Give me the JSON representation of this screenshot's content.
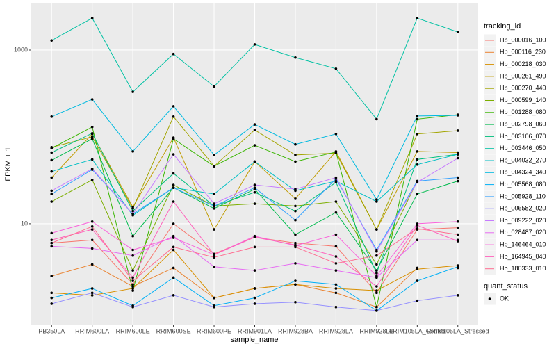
{
  "chart_data": {
    "type": "line",
    "x_label": "sample_name",
    "y_label": "FPKM + 1",
    "log_y": true,
    "grid": true,
    "legend_title": "tracking_id",
    "legend_position": "right",
    "categories": [
      "PB350LA",
      "RRIM600LA",
      "RRIM600LE",
      "RRIM600SE",
      "RRIM600PE",
      "RRIM901LA",
      "RRIM928BA",
      "RRIM928LA",
      "RRIM928LE",
      "RRIM105LA_Control",
      "RRIM105LA_Stressed"
    ],
    "ylim": [
      0.69,
      3436
    ],
    "yticks": [
      10,
      1000
    ],
    "point_legend": {
      "title": "quant_status",
      "levels": [
        "OK"
      ],
      "color": "#000000"
    },
    "series": [
      {
        "name": "Hb_000016_100",
        "color": "#F8766D",
        "values": [
          6,
          6.5,
          2,
          10,
          4.5,
          7,
          6,
          5.5,
          1.6,
          8.6,
          9
        ]
      },
      {
        "name": "Hb_000116_230",
        "color": "#EA8331",
        "values": [
          2.5,
          3.4,
          1.9,
          3.1,
          1.4,
          1.8,
          2,
          1.6,
          1.1,
          3.1,
          3.1
        ]
      },
      {
        "name": "Hb_000218_030",
        "color": "#D89000",
        "values": [
          1.6,
          1.5,
          1.8,
          5,
          1.4,
          1.8,
          2,
          1.8,
          1.7,
          3,
          3.3
        ]
      },
      {
        "name": "Hb_000261_490",
        "color": "#C09B00",
        "values": [
          34,
          108,
          15.6,
          98,
          8.6,
          52,
          19.4,
          68,
          8.6,
          68,
          66
        ]
      },
      {
        "name": "Hb_000270_440",
        "color": "#A3A500",
        "values": [
          76,
          100,
          15,
          171,
          46,
          120,
          62,
          65,
          8.6,
          108,
          118
        ]
      },
      {
        "name": "Hb_000599_140",
        "color": "#7CAE00",
        "values": [
          18,
          32,
          2.9,
          28,
          16,
          17,
          16,
          18,
          3.4,
          31,
          31
        ]
      },
      {
        "name": "Hb_001288_080",
        "color": "#39B600",
        "values": [
          74,
          130,
          1.7,
          95,
          46,
          80,
          52,
          67,
          1.1,
          160,
          180
        ]
      },
      {
        "name": "Hb_002798_060",
        "color": "#00BB4E",
        "values": [
          54,
          95,
          7.2,
          26,
          15,
          25,
          7.5,
          13.5,
          2.9,
          22,
          31
        ]
      },
      {
        "name": "Hb_003106_070",
        "color": "#00BF7D",
        "values": [
          66,
          110,
          14,
          38,
          16,
          23,
          14,
          30,
          2.7,
          55,
          63
        ]
      },
      {
        "name": "Hb_003446_050",
        "color": "#00C1A3",
        "values": [
          1290,
          2330,
          330,
          900,
          380,
          1160,
          820,
          610,
          160,
          2330,
          1610
        ]
      },
      {
        "name": "Hb_004032_270",
        "color": "#00BFC4",
        "values": [
          40,
          55,
          12.5,
          26,
          22,
          52,
          24,
          31,
          18,
          48,
          63
        ]
      },
      {
        "name": "Hb_004324_340",
        "color": "#00BAE0",
        "values": [
          171,
          270,
          68,
          225,
          62,
          139,
          82,
          108,
          19,
          174,
          177
        ]
      },
      {
        "name": "Hb_005568_080",
        "color": "#00B0F6",
        "values": [
          1.4,
          1.8,
          1.14,
          2.4,
          1.14,
          1.4,
          2.2,
          2,
          1,
          2.2,
          3.2
        ]
      },
      {
        "name": "Hb_005928_110",
        "color": "#35A2FF",
        "values": [
          22,
          42,
          13,
          26,
          16,
          26,
          11,
          33,
          5,
          31,
          34
        ]
      },
      {
        "name": "Hb_006582_020",
        "color": "#9590FF",
        "values": [
          1.2,
          1.6,
          1.1,
          1.5,
          1.1,
          1.2,
          1.25,
          1.1,
          1,
          1.3,
          1.5
        ]
      },
      {
        "name": "Hb_009222_020",
        "color": "#C77CFF",
        "values": [
          24,
          43,
          13,
          63,
          17,
          28,
          25,
          34,
          4.8,
          30,
          57
        ]
      },
      {
        "name": "Hb_028487_020",
        "color": "#E76BF3",
        "values": [
          5.5,
          5.2,
          4.3,
          7.2,
          3.2,
          2.9,
          3.5,
          2.9,
          2.4,
          6.5,
          6.5
        ]
      },
      {
        "name": "Hb_146464_010",
        "color": "#FA62DB",
        "values": [
          7.8,
          10.6,
          5,
          6.9,
          4.4,
          7.2,
          5.6,
          7.5,
          2.5,
          10,
          10.6
        ]
      },
      {
        "name": "Hb_164945_040",
        "color": "#FF62BC",
        "values": [
          6.5,
          8.6,
          2.4,
          18,
          4.4,
          7,
          5.7,
          4.2,
          1.9,
          9.6,
          6.3
        ]
      },
      {
        "name": "Hb_180333_010",
        "color": "#FF6C91",
        "values": [
          6,
          9.3,
          2.2,
          5.4,
          4.1,
          5.4,
          5.4,
          3.5,
          4.3,
          8.8,
          7.5
        ]
      }
    ]
  }
}
